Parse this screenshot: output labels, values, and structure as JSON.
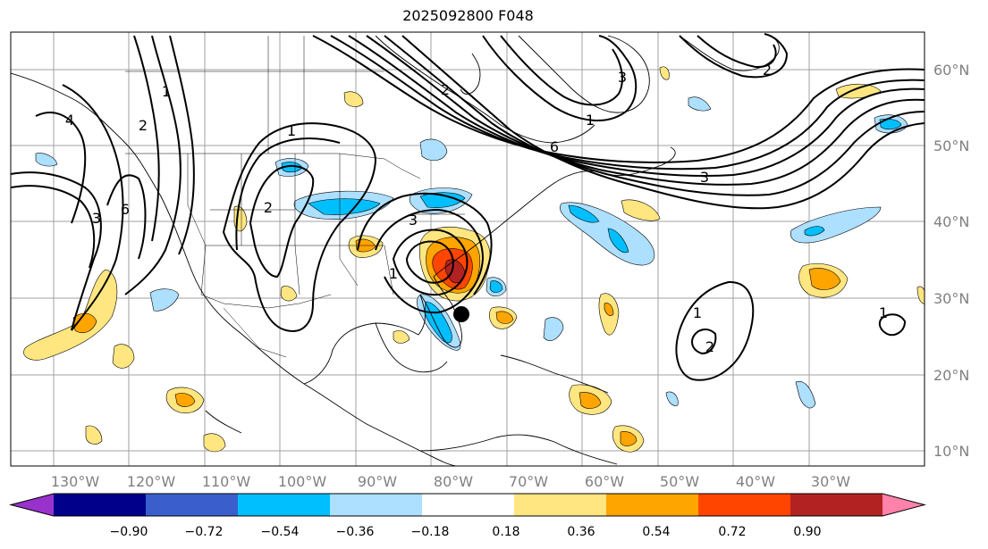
{
  "title": "2025092800 F048",
  "lon_ticks": [
    "130°W",
    "120°W",
    "110°W",
    "100°W",
    "90°W",
    "80°W",
    "70°W",
    "60°W",
    "50°W",
    "40°W",
    "30°W"
  ],
  "lat_ticks": [
    "60°N",
    "50°N",
    "40°N",
    "30°N",
    "20°N",
    "10°N"
  ],
  "colorbar": {
    "colors": [
      "#9932CC",
      "#00008B",
      "#3A5FCD",
      "#00BFFF",
      "#ADDFFF",
      "#FFFFFF",
      "#FFE680",
      "#FFA500",
      "#FF4500",
      "#B22222",
      "#FF82AB"
    ],
    "ticks": [
      "−0.90",
      "−0.72",
      "−0.54",
      "−0.36",
      "−0.18",
      "0.18",
      "0.36",
      "0.54",
      "0.72",
      "0.90"
    ]
  },
  "contour_labels": [
    "1",
    "2",
    "3",
    "4",
    "6",
    "1",
    "2",
    "3",
    "1",
    "2",
    "3",
    "6",
    "3",
    "1",
    "2",
    "1",
    "2",
    "1"
  ],
  "colors": {
    "coast": "#000000",
    "grid": "#999999",
    "contour": "#000000"
  }
}
